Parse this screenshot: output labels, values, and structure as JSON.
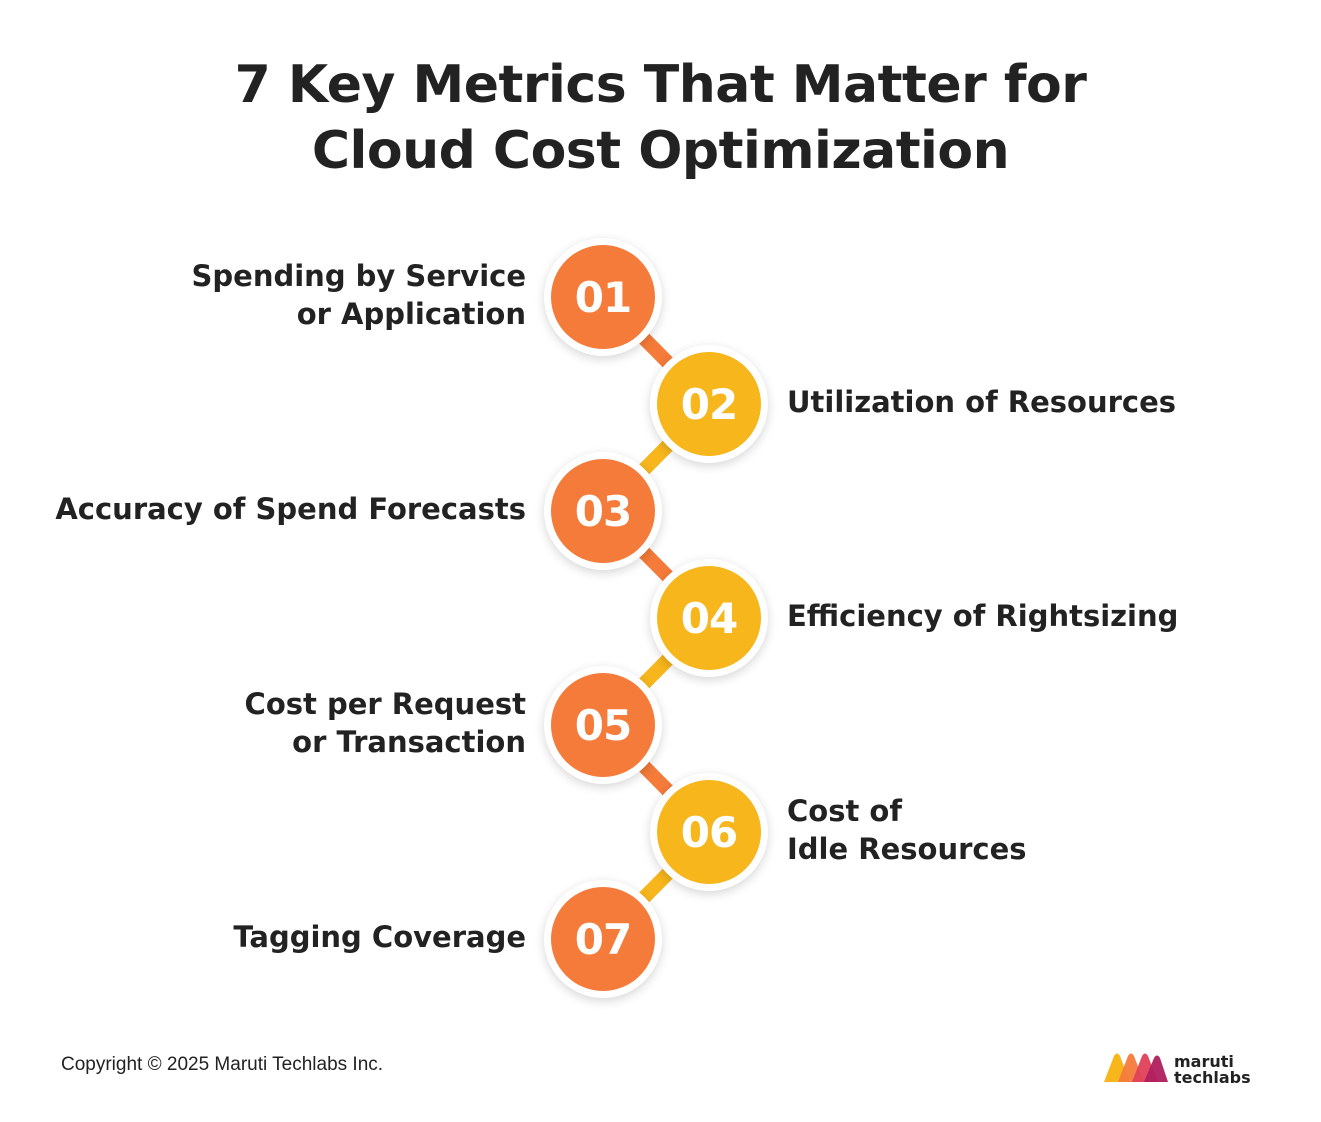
{
  "title": {
    "line1": "7 Key Metrics That Matter for",
    "line2": "Cloud Cost Optimization"
  },
  "metrics": [
    {
      "number": "01",
      "lines": [
        "Spending by Service",
        "or Application"
      ],
      "side": "left",
      "color": "orange"
    },
    {
      "number": "02",
      "lines": [
        "Utilization of Resources"
      ],
      "side": "right",
      "color": "yellow"
    },
    {
      "number": "03",
      "lines": [
        "Accuracy of Spend Forecasts"
      ],
      "side": "left",
      "color": "orange"
    },
    {
      "number": "04",
      "lines": [
        "Efficiency of Rightsizing"
      ],
      "side": "right",
      "color": "yellow"
    },
    {
      "number": "05",
      "lines": [
        "Cost per Request",
        "or Transaction"
      ],
      "side": "left",
      "color": "orange"
    },
    {
      "number": "06",
      "lines": [
        "Cost of",
        "Idle Resources"
      ],
      "side": "right",
      "color": "yellow"
    },
    {
      "number": "07",
      "lines": [
        "Tagging Coverage"
      ],
      "side": "left",
      "color": "orange"
    }
  ],
  "colors": {
    "orange": "#f47b3a",
    "yellow": "#f6b61c",
    "text": "#222222"
  },
  "footer": {
    "copyright": "Copyright © 2025 Maruti Techlabs Inc.",
    "logo_line1": "maruti",
    "logo_line2": "techlabs"
  }
}
